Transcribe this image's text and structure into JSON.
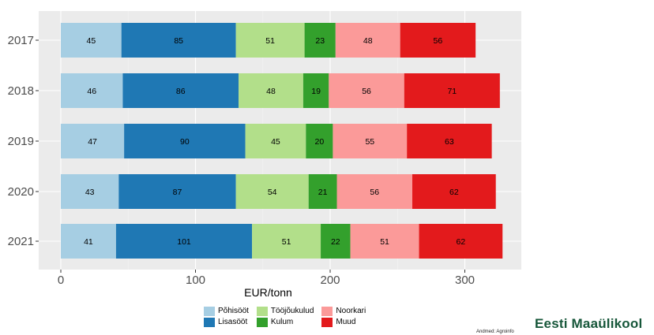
{
  "chart_data": {
    "type": "bar",
    "orientation": "horizontal",
    "stacked": true,
    "categories": [
      "2017",
      "2018",
      "2019",
      "2020",
      "2021"
    ],
    "series": [
      {
        "name": "Põhisööt",
        "color": "#a6cee3",
        "values": [
          45,
          46,
          47,
          43,
          41
        ]
      },
      {
        "name": "Lisasööt",
        "color": "#1f78b4",
        "values": [
          85,
          86,
          90,
          87,
          101
        ]
      },
      {
        "name": "Tööjõukulud",
        "color": "#b2df8a",
        "values": [
          51,
          48,
          45,
          54,
          51
        ]
      },
      {
        "name": "Kulum",
        "color": "#33a02c",
        "values": [
          23,
          19,
          20,
          21,
          22
        ]
      },
      {
        "name": "Noorkari",
        "color": "#fb9a99",
        "values": [
          48,
          56,
          55,
          56,
          51
        ]
      },
      {
        "name": "Muud",
        "color": "#e31a1c",
        "values": [
          56,
          71,
          63,
          62,
          62
        ]
      }
    ],
    "xlabel": "EUR/tonn",
    "ylabel": "",
    "xlim": [
      0,
      340
    ],
    "xticks": [
      0,
      100,
      200,
      300
    ],
    "grid": true,
    "legend_position": "bottom"
  },
  "source_note": "Andmed: Agroinfo",
  "brand": "Eesti Maaülikool"
}
